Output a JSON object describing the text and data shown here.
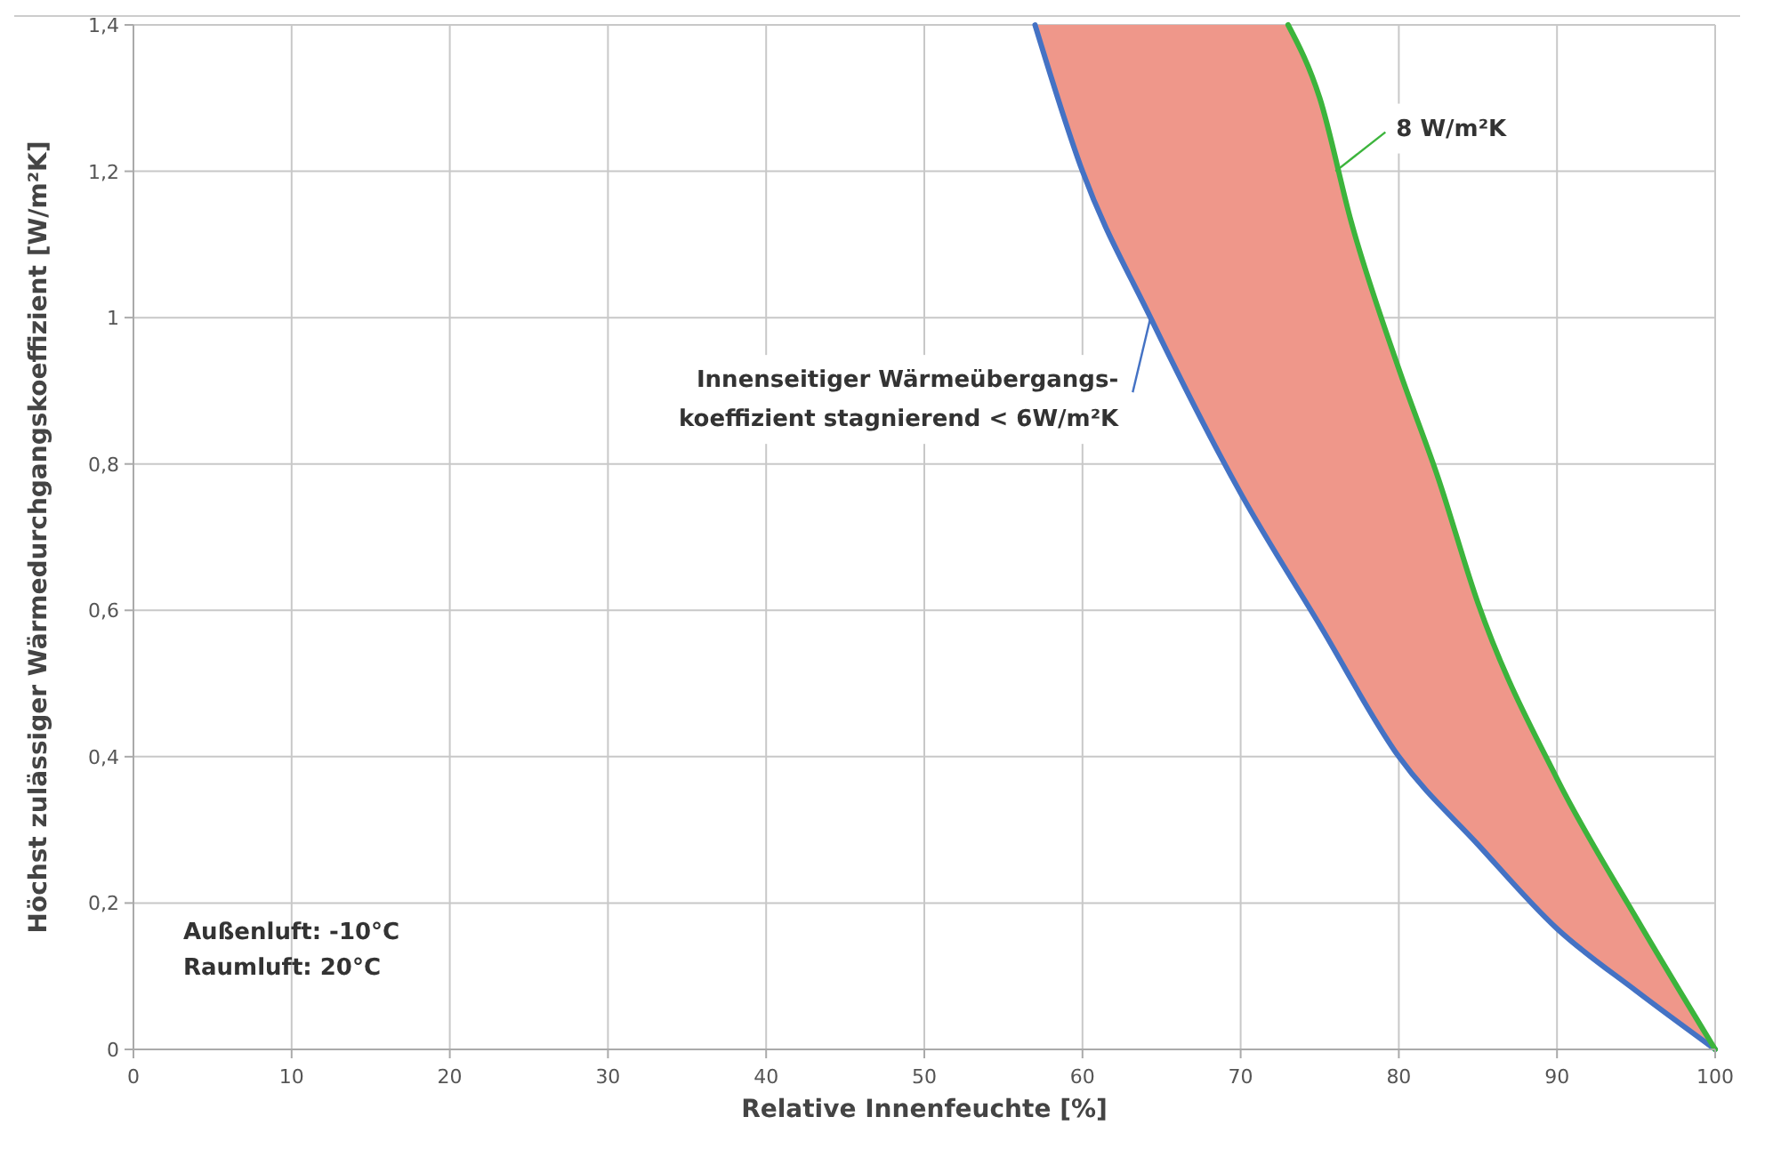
{
  "chart_data": {
    "type": "line",
    "xlabel": "Relative Innenfeuchte [%]",
    "ylabel": "Höchst zulässiger Wärmedurchgangskoeffizient [W/m²K]",
    "xlim": [
      0,
      100
    ],
    "xticks": [
      0,
      10,
      20,
      30,
      40,
      50,
      60,
      70,
      80,
      90,
      100
    ],
    "ylim": [
      0,
      1.4
    ],
    "yticks": [
      0,
      {
        "value": 0.2,
        "label": "0,2"
      },
      {
        "value": 0.4,
        "label": "0,4"
      },
      {
        "value": 0.6,
        "label": "0,6"
      },
      {
        "value": 0.8,
        "label": "0,8"
      },
      1,
      {
        "value": 1.2,
        "label": "1,2"
      },
      {
        "value": 1.4,
        "label": "1,4"
      }
    ],
    "grid": true,
    "line_style": "solid",
    "marker": "none",
    "series": [
      {
        "color": "#4472c4",
        "x": [
          57,
          60,
          64.3,
          70,
          75,
          80,
          85,
          90,
          95,
          100
        ],
        "values": [
          1.4,
          1.2,
          1.0,
          0.76,
          0.58,
          0.4,
          0.28,
          0.165,
          0.08,
          0
        ]
      },
      {
        "color": "#3cb43c",
        "x": [
          73,
          75,
          77,
          80,
          82.5,
          85,
          90,
          95,
          100
        ],
        "values": [
          1.4,
          1.3,
          1.13,
          0.93,
          0.78,
          0.61,
          0.37,
          0.18,
          0
        ]
      }
    ],
    "annotations": [
      {
        "text": "Innenseitiger Wärmeübergangs-\nkoeffizient stagnierend < 6W/m²K",
        "x": 64.3,
        "y": 1.0
      },
      {
        "text": "8 W/m²K",
        "x": 76,
        "y": 1.2
      },
      "Außenluft: -10°C\nRaumluft: 20°C"
    ]
  }
}
